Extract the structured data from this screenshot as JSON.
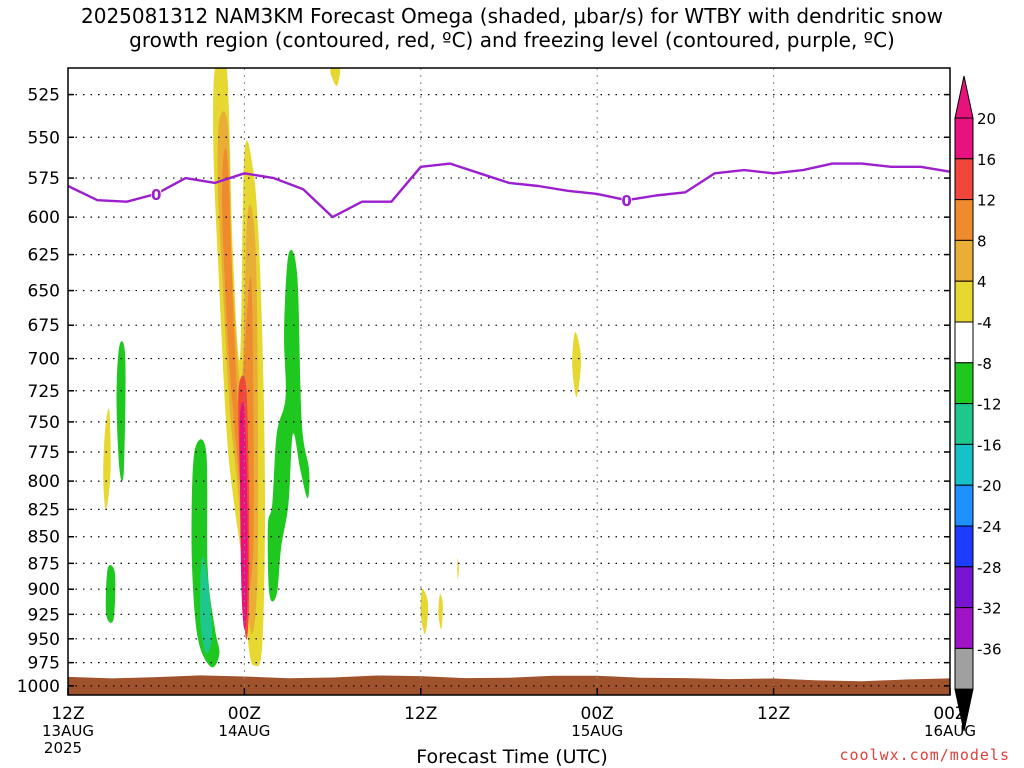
{
  "title_line1": "2025081312 NAM3KM Forecast Omega (shaded, μbar/s) for WTBY with dendritic snow",
  "title_line2": "growth region (contoured, red, ºC) and freezing level (contoured, purple, ºC)",
  "credit": "coolwx.com/models",
  "colors": {
    "freezing_level": "#9b1fcf",
    "ground": "#a0522d",
    "frame": "#000000"
  },
  "chart_data": {
    "type": "area",
    "xlabel": "Forecast Time (UTC)",
    "ylabel": "",
    "grid": true,
    "y_scale": "log-pressure",
    "ylim": [
      1010,
      510
    ],
    "xlim": [
      "2025-08-13 12Z",
      "2025-08-16 00Z"
    ],
    "y_ticks": [
      525,
      550,
      575,
      600,
      625,
      650,
      675,
      700,
      725,
      750,
      775,
      800,
      825,
      850,
      875,
      900,
      925,
      950,
      975,
      1000
    ],
    "x_ticks": [
      {
        "label": "12Z",
        "date": "13AUG",
        "extra": "2025"
      },
      {
        "label": "00Z",
        "date": "14AUG",
        "extra": ""
      },
      {
        "label": "12Z",
        "date": "",
        "extra": ""
      },
      {
        "label": "00Z",
        "date": "15AUG",
        "extra": ""
      },
      {
        "label": "12Z",
        "date": "",
        "extra": ""
      },
      {
        "label": "00Z",
        "date": "16AUG",
        "extra": ""
      }
    ],
    "colorbar": {
      "labels": [
        "20",
        "16",
        "12",
        "8",
        "4",
        "-4",
        "-8",
        "-12",
        "-16",
        "-20",
        "-24",
        "-28",
        "-32",
        "-36"
      ],
      "colors": [
        "#e8127e",
        "#f2463c",
        "#ef8a2d",
        "#e8ae35",
        "#e6d830",
        "#ffffff",
        "#1ec81e",
        "#1ec88c",
        "#17c1c8",
        "#1e90ff",
        "#1e3cff",
        "#7814d2",
        "#a014c8",
        "#a0a0a0"
      ],
      "top_color": "#e8127e",
      "bottom_color": "#000000"
    },
    "freezing_level": {
      "label": "0",
      "hours": [
        0,
        2,
        4,
        6,
        8,
        10,
        12,
        14,
        16,
        18,
        20,
        22,
        24,
        26,
        28,
        30,
        32,
        34,
        36,
        38,
        40,
        42,
        44,
        46,
        48,
        50,
        52,
        54,
        56,
        58,
        60
      ],
      "pressure": [
        580,
        589,
        590,
        585,
        575,
        578,
        572,
        575,
        582,
        600,
        590,
        590,
        568,
        566,
        572,
        578,
        580,
        583,
        585,
        589,
        586,
        584,
        572,
        570,
        572,
        570,
        566,
        566,
        568,
        568,
        571
      ]
    },
    "omega_areas": [
      {
        "color": "#e6d830",
        "value": 4,
        "pts": [
          [
            10.0,
            510
          ],
          [
            10.8,
            510
          ],
          [
            11.2,
            620
          ],
          [
            11.7,
            700
          ],
          [
            12.0,
            560
          ],
          [
            12.6,
            570
          ],
          [
            13.0,
            620
          ],
          [
            13.3,
            720
          ],
          [
            13.4,
            840
          ],
          [
            13.2,
            960
          ],
          [
            12.7,
            978
          ],
          [
            12.3,
            960
          ],
          [
            11.9,
            880
          ],
          [
            11.3,
            820
          ],
          [
            10.8,
            760
          ],
          [
            10.3,
            650
          ],
          [
            9.9,
            560
          ]
        ]
      },
      {
        "color": "#e8ae35",
        "value": 8,
        "pts": [
          [
            10.3,
            540
          ],
          [
            10.9,
            545
          ],
          [
            11.2,
            640
          ],
          [
            11.8,
            720
          ],
          [
            12.2,
            600
          ],
          [
            12.7,
            610
          ],
          [
            12.9,
            700
          ],
          [
            12.9,
            880
          ],
          [
            12.5,
            945
          ],
          [
            12.0,
            880
          ],
          [
            11.5,
            800
          ],
          [
            11.0,
            740
          ],
          [
            10.6,
            660
          ],
          [
            10.2,
            580
          ]
        ]
      },
      {
        "color": "#ef8a2d",
        "value": 12,
        "pts": [
          [
            10.6,
            560
          ],
          [
            10.9,
            570
          ],
          [
            11.3,
            680
          ],
          [
            11.7,
            740
          ],
          [
            12.4,
            640
          ],
          [
            12.6,
            720
          ],
          [
            12.6,
            860
          ],
          [
            12.2,
            900
          ],
          [
            11.8,
            820
          ],
          [
            11.3,
            750
          ],
          [
            10.9,
            690
          ],
          [
            10.5,
            600
          ]
        ]
      },
      {
        "color": "#f2463c",
        "value": 16,
        "pts": [
          [
            11.6,
            725
          ],
          [
            12.1,
            720
          ],
          [
            12.3,
            800
          ],
          [
            12.3,
            920
          ],
          [
            12.1,
            950
          ],
          [
            11.9,
            900
          ],
          [
            11.7,
            800
          ]
        ]
      },
      {
        "color": "#e8127e",
        "value": 20,
        "pts": [
          [
            11.7,
            745
          ],
          [
            12.0,
            740
          ],
          [
            12.2,
            820
          ],
          [
            12.2,
            910
          ],
          [
            12.0,
            940
          ],
          [
            11.8,
            900
          ],
          [
            11.7,
            800
          ]
        ]
      },
      {
        "color": "#e6d830",
        "value": 4,
        "pts": [
          [
            2.5,
            760
          ],
          [
            2.8,
            740
          ],
          [
            2.9,
            790
          ],
          [
            2.6,
            825
          ],
          [
            2.4,
            800
          ]
        ]
      },
      {
        "color": "#e6d830",
        "value": 4,
        "pts": [
          [
            17.9,
            510
          ],
          [
            18.5,
            510
          ],
          [
            18.3,
            520
          ],
          [
            17.9,
            514
          ]
        ]
      },
      {
        "color": "#e6d830",
        "value": 4,
        "pts": [
          [
            24.1,
            900
          ],
          [
            24.5,
            915
          ],
          [
            24.3,
            945
          ],
          [
            24.0,
            925
          ]
        ]
      },
      {
        "color": "#e6d830",
        "value": 4,
        "pts": [
          [
            25.3,
            905
          ],
          [
            25.5,
            915
          ],
          [
            25.4,
            940
          ],
          [
            25.2,
            925
          ]
        ]
      },
      {
        "color": "#e6d830",
        "value": 4,
        "pts": [
          [
            26.5,
            870
          ],
          [
            26.6,
            880
          ],
          [
            26.5,
            890
          ]
        ]
      },
      {
        "color": "#e6d830",
        "value": 4,
        "pts": [
          [
            34.5,
            680
          ],
          [
            34.9,
            700
          ],
          [
            34.6,
            730
          ],
          [
            34.3,
            705
          ]
        ]
      },
      {
        "color": "#1ec81e",
        "value": -4,
        "pts": [
          [
            3.5,
            690
          ],
          [
            3.9,
            700
          ],
          [
            3.8,
            790
          ],
          [
            3.5,
            790
          ],
          [
            3.3,
            730
          ]
        ]
      },
      {
        "color": "#1ec81e",
        "value": -4,
        "pts": [
          [
            2.7,
            880
          ],
          [
            3.2,
            885
          ],
          [
            3.1,
            930
          ],
          [
            2.6,
            925
          ]
        ]
      },
      {
        "color": "#1ec81e",
        "value": -4,
        "pts": [
          [
            8.6,
            775
          ],
          [
            9.4,
            775
          ],
          [
            9.5,
            880
          ],
          [
            10.0,
            940
          ],
          [
            10.3,
            965
          ],
          [
            9.8,
            980
          ],
          [
            9.0,
            960
          ],
          [
            8.6,
            920
          ],
          [
            8.4,
            850
          ]
        ]
      },
      {
        "color": "#1ec88c",
        "value": -8,
        "pts": [
          [
            9.1,
            870
          ],
          [
            9.5,
            890
          ],
          [
            9.8,
            945
          ],
          [
            9.4,
            965
          ],
          [
            9.0,
            930
          ]
        ]
      },
      {
        "color": "#1ec81e",
        "value": -4,
        "pts": [
          [
            15.0,
            625
          ],
          [
            15.6,
            640
          ],
          [
            15.9,
            750
          ],
          [
            16.4,
            790
          ],
          [
            16.3,
            815
          ],
          [
            15.8,
            790
          ],
          [
            15.3,
            760
          ],
          [
            15.0,
            820
          ],
          [
            14.5,
            860
          ],
          [
            14.2,
            905
          ],
          [
            13.7,
            905
          ],
          [
            13.6,
            840
          ],
          [
            13.9,
            820
          ],
          [
            14.2,
            760
          ],
          [
            14.8,
            730
          ],
          [
            14.7,
            680
          ]
        ]
      }
    ]
  }
}
